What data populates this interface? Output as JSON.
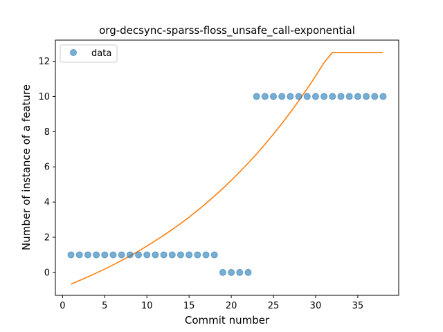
{
  "chart_data": {
    "type": "scatter",
    "title": "org-decsync-sparss-floss_unsafe_call-exponential",
    "xlabel": "Commit number",
    "ylabel": "Number of instance of a feature",
    "xlim": [
      -0.85,
      39.85
    ],
    "ylim": [
      -1.3,
      13.2
    ],
    "xticks": [
      0,
      5,
      10,
      15,
      20,
      25,
      30,
      35
    ],
    "yticks": [
      0,
      2,
      4,
      6,
      8,
      10,
      12
    ],
    "grid": false,
    "legend_position": "top-left",
    "series": [
      {
        "name": "data",
        "kind": "scatter",
        "color": "#1f77b4",
        "x": [
          1,
          2,
          3,
          4,
          5,
          6,
          7,
          8,
          9,
          10,
          11,
          12,
          13,
          14,
          15,
          16,
          17,
          18,
          19,
          20,
          21,
          22,
          23,
          24,
          25,
          26,
          27,
          28,
          29,
          30,
          31,
          32,
          33,
          34,
          35,
          36,
          37,
          38
        ],
        "y": [
          1,
          1,
          1,
          1,
          1,
          1,
          1,
          1,
          1,
          1,
          1,
          1,
          1,
          1,
          1,
          1,
          1,
          1,
          0,
          0,
          0,
          0,
          10,
          10,
          10,
          10,
          10,
          10,
          10,
          10,
          10,
          10,
          10,
          10,
          10,
          10,
          10,
          10
        ]
      },
      {
        "kind": "line",
        "color": "#ff7f0e",
        "x": [
          1,
          2,
          3,
          4,
          5,
          6,
          7,
          8,
          9,
          10,
          11,
          12,
          13,
          14,
          15,
          16,
          17,
          18,
          19,
          20,
          21,
          22,
          23,
          24,
          25,
          26,
          27,
          28,
          29,
          30,
          31,
          32,
          33,
          34,
          35,
          36,
          37,
          38
        ],
        "y": [
          -0.66,
          -0.46,
          -0.25,
          -0.03,
          0.19,
          0.43,
          0.68,
          0.94,
          1.21,
          1.5,
          1.8,
          2.11,
          2.44,
          2.78,
          3.14,
          3.52,
          3.92,
          4.34,
          4.77,
          5.23,
          5.71,
          6.21,
          6.73,
          7.28,
          7.86,
          8.46,
          9.09,
          9.75,
          10.44,
          11.16,
          11.92,
          12.5,
          12.5,
          12.5,
          12.5,
          12.5,
          12.5,
          12.5
        ]
      }
    ]
  }
}
